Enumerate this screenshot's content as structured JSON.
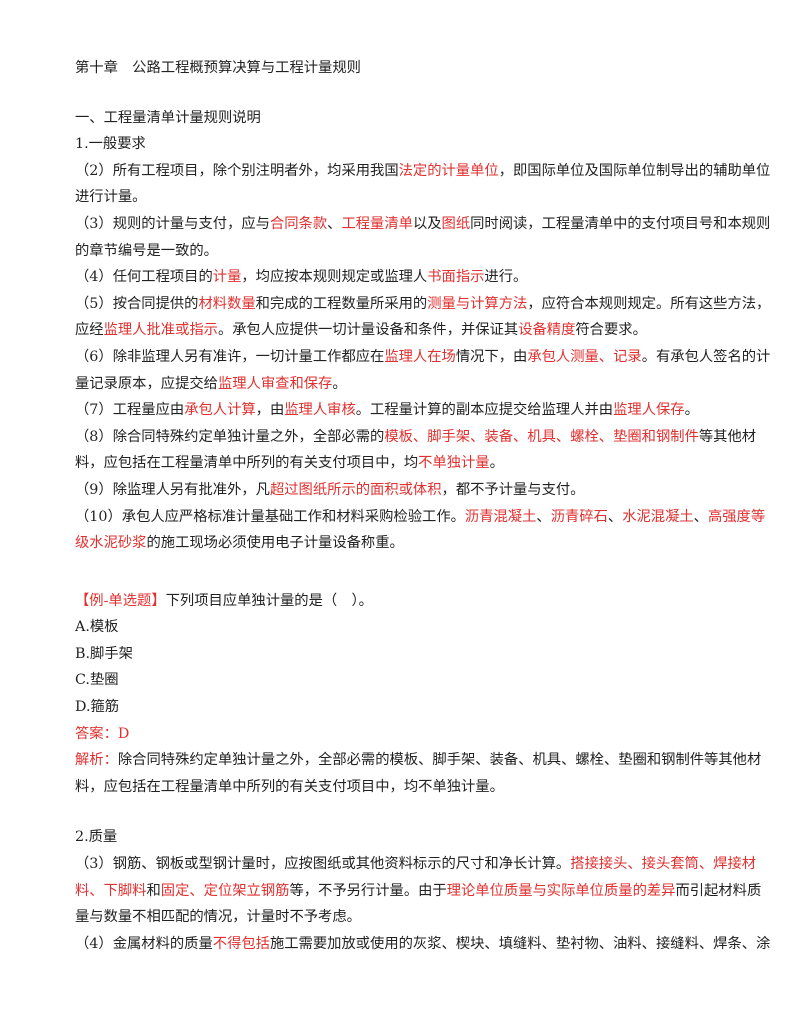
{
  "colors": {
    "text": "#222222",
    "highlight": "#e0302f"
  },
  "blocks": [
    {
      "name": "chapter-title",
      "lines": [
        [
          {
            "t": "第十章　公路工程概预算决算与工程计量规则"
          }
        ]
      ]
    },
    {
      "gap": "a"
    },
    {
      "name": "section-heading",
      "lines": [
        [
          {
            "t": "一、工程量清单计量规则说明"
          }
        ]
      ]
    },
    {
      "name": "subsection-heading",
      "lines": [
        [
          {
            "t": "1.一般要求"
          }
        ]
      ]
    },
    {
      "name": "paragraph",
      "lines": [
        [
          {
            "t": "（2）所有工程项目，除个别注明者外，均采用我国"
          },
          {
            "t": "法定的计量单位",
            "r": true
          },
          {
            "t": "，即国际单位及国际单位制导出的辅助单位"
          }
        ],
        [
          {
            "t": "进行计量。"
          }
        ]
      ]
    },
    {
      "name": "paragraph",
      "lines": [
        [
          {
            "t": "（3）规则的计量与支付，应与"
          },
          {
            "t": "合同条款",
            "r": true
          },
          {
            "t": "、"
          },
          {
            "t": "工程量清单",
            "r": true
          },
          {
            "t": "以及"
          },
          {
            "t": "图纸",
            "r": true
          },
          {
            "t": "同时阅读，工程量清单中的支付项目号和本规则"
          }
        ],
        [
          {
            "t": "的章节编号是一致的。"
          }
        ]
      ]
    },
    {
      "name": "paragraph",
      "lines": [
        [
          {
            "t": "（4）任何工程项目的"
          },
          {
            "t": "计量",
            "r": true
          },
          {
            "t": "，均应按本规则规定或监理人"
          },
          {
            "t": "书面指示",
            "r": true
          },
          {
            "t": "进行。"
          }
        ]
      ]
    },
    {
      "name": "paragraph",
      "lines": [
        [
          {
            "t": "（5）按合同提供的"
          },
          {
            "t": "材料数量",
            "r": true
          },
          {
            "t": "和完成的工程数量所采用的"
          },
          {
            "t": "测量与计算方法",
            "r": true
          },
          {
            "t": "，应符合本规则规定。所有这些方法，"
          }
        ],
        [
          {
            "t": "应经"
          },
          {
            "t": "监理人批准或指示",
            "r": true
          },
          {
            "t": "。承包人应提供一切计量设备和条件，并保证其"
          },
          {
            "t": "设备精度",
            "r": true
          },
          {
            "t": "符合要求。"
          }
        ]
      ]
    },
    {
      "name": "paragraph",
      "lines": [
        [
          {
            "t": "（6）除非监理人另有准许，一切计量工作都应在"
          },
          {
            "t": "监理人在场",
            "r": true
          },
          {
            "t": "情况下，由"
          },
          {
            "t": "承包人测量、记录",
            "r": true
          },
          {
            "t": "。有承包人签名的计"
          }
        ],
        [
          {
            "t": "量记录原本，应提交给"
          },
          {
            "t": "监理人审查和保存",
            "r": true
          },
          {
            "t": "。"
          }
        ]
      ]
    },
    {
      "name": "paragraph",
      "lines": [
        [
          {
            "t": "（7）工程量应由"
          },
          {
            "t": "承包人计算",
            "r": true
          },
          {
            "t": "，由"
          },
          {
            "t": "监理人审核",
            "r": true
          },
          {
            "t": "。工程量计算的副本应提交给监理人并由"
          },
          {
            "t": "监理人保存",
            "r": true
          },
          {
            "t": "。"
          }
        ]
      ]
    },
    {
      "name": "paragraph",
      "lines": [
        [
          {
            "t": "（8）除合同特殊约定单独计量之外，全部必需的"
          },
          {
            "t": "模板、脚手架、装备、机具、螺栓、垫圈和钢制件",
            "r": true
          },
          {
            "t": "等其他材"
          }
        ],
        [
          {
            "t": "料，应包括在工程量清单中所列的有关支付项目中，均"
          },
          {
            "t": "不单独计量",
            "r": true
          },
          {
            "t": "。"
          }
        ]
      ]
    },
    {
      "name": "paragraph",
      "lines": [
        [
          {
            "t": "（9）除监理人另有批准外，凡"
          },
          {
            "t": "超过图纸所示的面积或体积",
            "r": true
          },
          {
            "t": "，都不予计量与支付。"
          }
        ]
      ]
    },
    {
      "name": "paragraph",
      "lines": [
        [
          {
            "t": "（10）承包人应严格标准计量基础工作和材料采购检验工作。"
          },
          {
            "t": "沥青混凝土",
            "r": true
          },
          {
            "t": "、"
          },
          {
            "t": "沥青碎石",
            "r": true
          },
          {
            "t": "、"
          },
          {
            "t": "水泥混凝土",
            "r": true
          },
          {
            "t": "、"
          },
          {
            "t": "高强度等",
            "r": true
          }
        ],
        [
          {
            "t": "级水泥砂浆",
            "r": true
          },
          {
            "t": "的施工现场必须使用电子计量设备称重。"
          }
        ]
      ]
    },
    {
      "gap": "b"
    },
    {
      "name": "question",
      "lines": [
        [
          {
            "t": "【例-单选题】",
            "r": true
          },
          {
            "t": "下列项目应单独计量的是（　）。"
          }
        ]
      ]
    },
    {
      "name": "option-a",
      "lines": [
        [
          {
            "t": "A.模板"
          }
        ]
      ]
    },
    {
      "name": "option-b",
      "lines": [
        [
          {
            "t": "B.脚手架"
          }
        ]
      ]
    },
    {
      "name": "option-c",
      "lines": [
        [
          {
            "t": "C.垫圈"
          }
        ]
      ]
    },
    {
      "name": "option-d",
      "lines": [
        [
          {
            "t": "D.箍筋"
          }
        ]
      ]
    },
    {
      "name": "answer",
      "lines": [
        [
          {
            "t": "答案：D",
            "r": true
          }
        ]
      ]
    },
    {
      "name": "explanation",
      "lines": [
        [
          {
            "t": "解析：",
            "r": true
          },
          {
            "t": "除合同特殊约定单独计量之外，全部必需的模板、脚手架、装备、机具、螺栓、垫圈和钢制件等其他材"
          }
        ],
        [
          {
            "t": "料，应包括在工程量清单中所列的有关支付项目中，均不单独计量。"
          }
        ]
      ]
    },
    {
      "gap": "c"
    },
    {
      "name": "subsection-heading",
      "lines": [
        [
          {
            "t": "2.质量"
          }
        ]
      ]
    },
    {
      "name": "paragraph",
      "lines": [
        [
          {
            "t": "（3）钢筋、钢板或型钢计量时，应按图纸或其他资料标示的尺寸和净长计算。"
          },
          {
            "t": "搭接接头、接头套筒、焊接材",
            "r": true
          }
        ],
        [
          {
            "t": "料、下脚料",
            "r": true
          },
          {
            "t": "和"
          },
          {
            "t": "固定、定位架立钢筋",
            "r": true
          },
          {
            "t": "等，不予另行计量。由于"
          },
          {
            "t": "理论单位质量与实际单位质量的差异",
            "r": true
          },
          {
            "t": "而引起材料质"
          }
        ],
        [
          {
            "t": "量与数量不相匹配的情况，计量时不予考虑。"
          }
        ]
      ]
    },
    {
      "name": "paragraph",
      "lines": [
        [
          {
            "t": "（4）金属材料的质量"
          },
          {
            "t": "不得包括",
            "r": true
          },
          {
            "t": "施工需要加放或使用的灰浆、楔块、填缝料、垫衬物、油料、接缝料、焊条、涂"
          }
        ]
      ]
    }
  ]
}
